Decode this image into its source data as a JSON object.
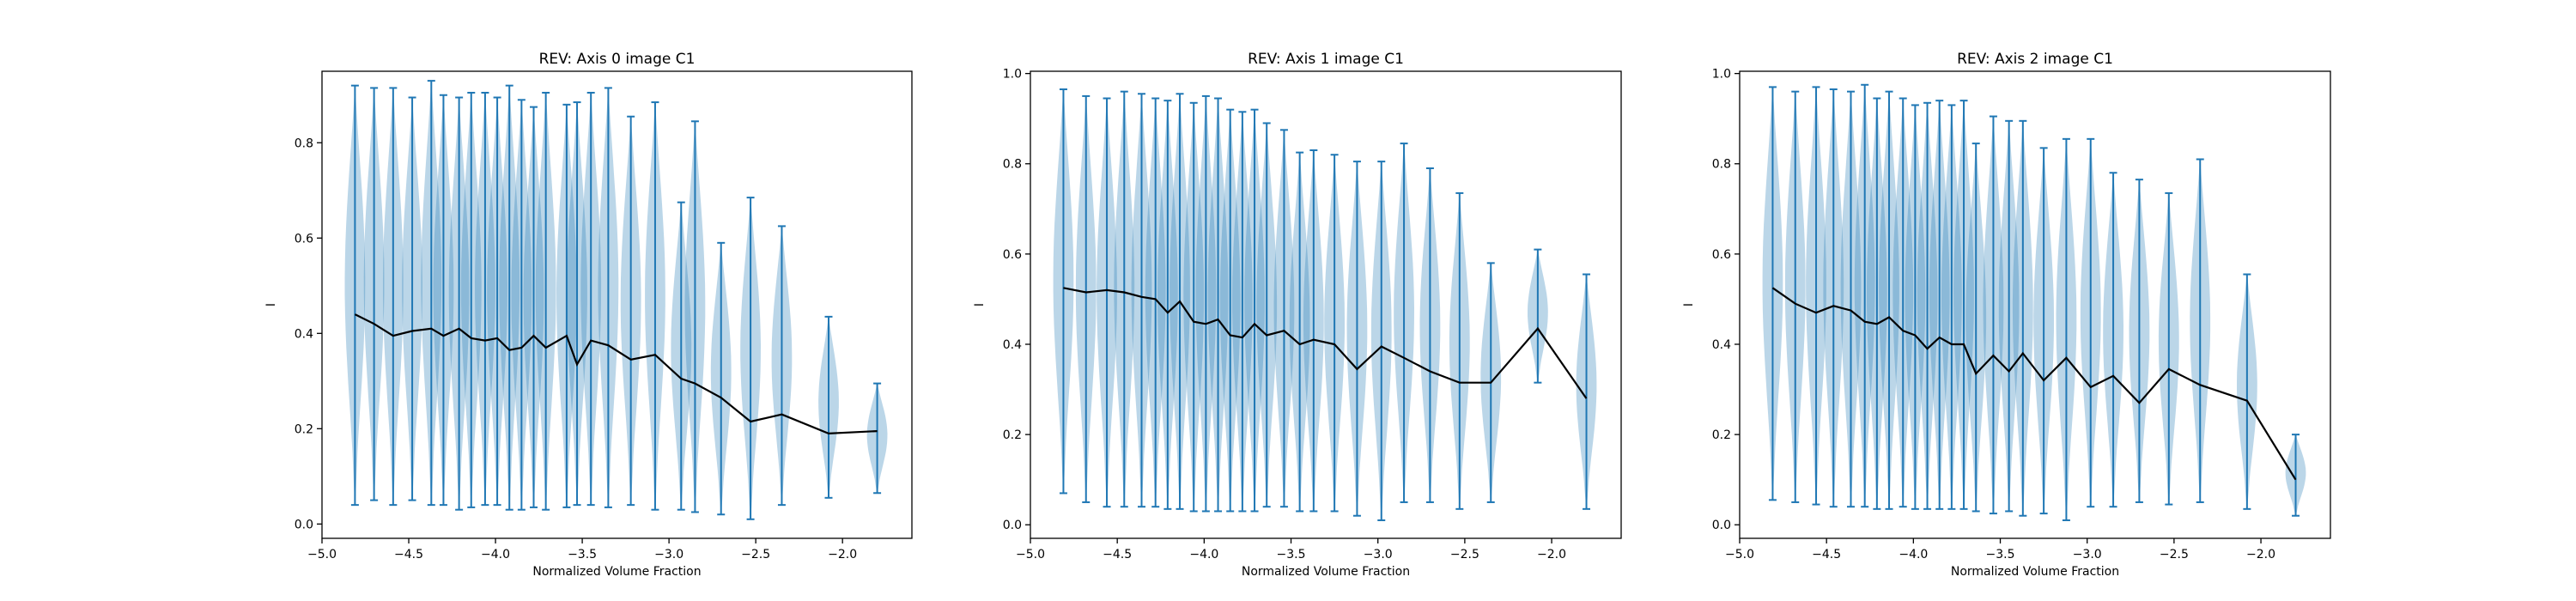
{
  "colors": {
    "violin": "#1f77b4",
    "mean_line": "#000000",
    "axes": "#000000",
    "background": "#ffffff"
  },
  "chart_data": [
    {
      "type": "violin",
      "title": "REV: Axis 0 image C1",
      "xlabel": "Normalized Volume Fraction",
      "ylabel": "I",
      "xlim": [
        -5.0,
        -1.6
      ],
      "ylim": [
        -0.03,
        0.95
      ],
      "xticks": [
        "−5.0",
        "−4.5",
        "−4.0",
        "−3.5",
        "−3.0",
        "−2.5",
        "−2.0"
      ],
      "yticks": [
        "0.0",
        "0.2",
        "0.4",
        "0.6",
        "0.8"
      ],
      "grid": false,
      "violins": [
        {
          "x": -4.81,
          "min": 0.04,
          "max": 0.92,
          "mean": 0.44
        },
        {
          "x": -4.7,
          "min": 0.05,
          "max": 0.915,
          "mean": 0.42
        },
        {
          "x": -4.59,
          "min": 0.04,
          "max": 0.915,
          "mean": 0.395
        },
        {
          "x": -4.48,
          "min": 0.05,
          "max": 0.895,
          "mean": 0.405
        },
        {
          "x": -4.37,
          "min": 0.04,
          "max": 0.93,
          "mean": 0.41
        },
        {
          "x": -4.3,
          "min": 0.04,
          "max": 0.9,
          "mean": 0.395
        },
        {
          "x": -4.21,
          "min": 0.03,
          "max": 0.895,
          "mean": 0.41
        },
        {
          "x": -4.14,
          "min": 0.035,
          "max": 0.905,
          "mean": 0.39
        },
        {
          "x": -4.06,
          "min": 0.04,
          "max": 0.905,
          "mean": 0.385
        },
        {
          "x": -3.99,
          "min": 0.04,
          "max": 0.895,
          "mean": 0.39
        },
        {
          "x": -3.92,
          "min": 0.03,
          "max": 0.92,
          "mean": 0.365
        },
        {
          "x": -3.85,
          "min": 0.03,
          "max": 0.89,
          "mean": 0.37
        },
        {
          "x": -3.78,
          "min": 0.035,
          "max": 0.875,
          "mean": 0.395
        },
        {
          "x": -3.71,
          "min": 0.03,
          "max": 0.905,
          "mean": 0.37
        },
        {
          "x": -3.59,
          "min": 0.035,
          "max": 0.88,
          "mean": 0.395
        },
        {
          "x": -3.53,
          "min": 0.04,
          "max": 0.885,
          "mean": 0.335
        },
        {
          "x": -3.45,
          "min": 0.04,
          "max": 0.905,
          "mean": 0.385
        },
        {
          "x": -3.35,
          "min": 0.035,
          "max": 0.915,
          "mean": 0.375
        },
        {
          "x": -3.22,
          "min": 0.04,
          "max": 0.855,
          "mean": 0.345
        },
        {
          "x": -3.08,
          "min": 0.03,
          "max": 0.885,
          "mean": 0.355
        },
        {
          "x": -2.93,
          "min": 0.03,
          "max": 0.675,
          "mean": 0.305
        },
        {
          "x": -2.85,
          "min": 0.025,
          "max": 0.845,
          "mean": 0.295
        },
        {
          "x": -2.7,
          "min": 0.02,
          "max": 0.59,
          "mean": 0.265
        },
        {
          "x": -2.53,
          "min": 0.01,
          "max": 0.685,
          "mean": 0.215
        },
        {
          "x": -2.35,
          "min": 0.04,
          "max": 0.625,
          "mean": 0.23
        },
        {
          "x": -2.08,
          "min": 0.055,
          "max": 0.435,
          "mean": 0.19
        },
        {
          "x": -1.8,
          "min": 0.065,
          "max": 0.295,
          "mean": 0.195
        }
      ]
    },
    {
      "type": "violin",
      "title": "REV: Axis 1 image C1",
      "xlabel": "Normalized Volume Fraction",
      "ylabel": "I",
      "xlim": [
        -5.0,
        -1.6
      ],
      "ylim": [
        -0.03,
        1.005
      ],
      "xticks": [
        "−5.0",
        "−4.5",
        "−4.0",
        "−3.5",
        "−3.0",
        "−2.5",
        "−2.0"
      ],
      "yticks": [
        "0.0",
        "0.2",
        "0.4",
        "0.6",
        "0.8",
        "1.0"
      ],
      "grid": false,
      "violins": [
        {
          "x": -4.81,
          "min": 0.07,
          "max": 0.965,
          "mean": 0.525
        },
        {
          "x": -4.68,
          "min": 0.05,
          "max": 0.95,
          "mean": 0.515
        },
        {
          "x": -4.56,
          "min": 0.04,
          "max": 0.945,
          "mean": 0.52
        },
        {
          "x": -4.46,
          "min": 0.04,
          "max": 0.96,
          "mean": 0.515
        },
        {
          "x": -4.36,
          "min": 0.04,
          "max": 0.955,
          "mean": 0.505
        },
        {
          "x": -4.28,
          "min": 0.04,
          "max": 0.945,
          "mean": 0.5
        },
        {
          "x": -4.21,
          "min": 0.035,
          "max": 0.94,
          "mean": 0.47
        },
        {
          "x": -4.14,
          "min": 0.035,
          "max": 0.955,
          "mean": 0.495
        },
        {
          "x": -4.06,
          "min": 0.03,
          "max": 0.935,
          "mean": 0.45
        },
        {
          "x": -3.99,
          "min": 0.03,
          "max": 0.95,
          "mean": 0.445
        },
        {
          "x": -3.92,
          "min": 0.03,
          "max": 0.945,
          "mean": 0.455
        },
        {
          "x": -3.85,
          "min": 0.03,
          "max": 0.92,
          "mean": 0.42
        },
        {
          "x": -3.78,
          "min": 0.03,
          "max": 0.915,
          "mean": 0.415
        },
        {
          "x": -3.71,
          "min": 0.03,
          "max": 0.92,
          "mean": 0.445
        },
        {
          "x": -3.64,
          "min": 0.04,
          "max": 0.89,
          "mean": 0.42
        },
        {
          "x": -3.54,
          "min": 0.04,
          "max": 0.875,
          "mean": 0.43
        },
        {
          "x": -3.45,
          "min": 0.03,
          "max": 0.825,
          "mean": 0.4
        },
        {
          "x": -3.37,
          "min": 0.03,
          "max": 0.83,
          "mean": 0.41
        },
        {
          "x": -3.25,
          "min": 0.03,
          "max": 0.82,
          "mean": 0.4
        },
        {
          "x": -3.12,
          "min": 0.02,
          "max": 0.805,
          "mean": 0.345
        },
        {
          "x": -2.98,
          "min": 0.01,
          "max": 0.805,
          "mean": 0.395
        },
        {
          "x": -2.85,
          "min": 0.05,
          "max": 0.845,
          "mean": 0.37
        },
        {
          "x": -2.7,
          "min": 0.05,
          "max": 0.79,
          "mean": 0.34
        },
        {
          "x": -2.53,
          "min": 0.035,
          "max": 0.735,
          "mean": 0.315
        },
        {
          "x": -2.35,
          "min": 0.05,
          "max": 0.58,
          "mean": 0.315
        },
        {
          "x": -2.08,
          "min": 0.315,
          "max": 0.61,
          "mean": 0.435
        },
        {
          "x": -1.8,
          "min": 0.035,
          "max": 0.555,
          "mean": 0.28
        }
      ]
    },
    {
      "type": "violin",
      "title": "REV: Axis 2 image C1",
      "xlabel": "Normalized Volume Fraction",
      "ylabel": "I",
      "xlim": [
        -5.0,
        -1.6
      ],
      "ylim": [
        -0.03,
        1.005
      ],
      "xticks": [
        "−5.0",
        "−4.5",
        "−4.0",
        "−3.5",
        "−3.0",
        "−2.5",
        "−2.0"
      ],
      "yticks": [
        "0.0",
        "0.2",
        "0.4",
        "0.6",
        "0.8",
        "1.0"
      ],
      "grid": false,
      "violins": [
        {
          "x": -4.81,
          "min": 0.055,
          "max": 0.97,
          "mean": 0.525
        },
        {
          "x": -4.68,
          "min": 0.05,
          "max": 0.96,
          "mean": 0.49
        },
        {
          "x": -4.56,
          "min": 0.045,
          "max": 0.97,
          "mean": 0.47
        },
        {
          "x": -4.46,
          "min": 0.04,
          "max": 0.965,
          "mean": 0.485
        },
        {
          "x": -4.36,
          "min": 0.04,
          "max": 0.96,
          "mean": 0.475
        },
        {
          "x": -4.28,
          "min": 0.04,
          "max": 0.975,
          "mean": 0.45
        },
        {
          "x": -4.21,
          "min": 0.035,
          "max": 0.945,
          "mean": 0.445
        },
        {
          "x": -4.14,
          "min": 0.035,
          "max": 0.96,
          "mean": 0.46
        },
        {
          "x": -4.06,
          "min": 0.04,
          "max": 0.945,
          "mean": 0.43
        },
        {
          "x": -3.99,
          "min": 0.035,
          "max": 0.93,
          "mean": 0.42
        },
        {
          "x": -3.92,
          "min": 0.035,
          "max": 0.935,
          "mean": 0.39
        },
        {
          "x": -3.85,
          "min": 0.035,
          "max": 0.94,
          "mean": 0.415
        },
        {
          "x": -3.78,
          "min": 0.035,
          "max": 0.93,
          "mean": 0.4
        },
        {
          "x": -3.71,
          "min": 0.035,
          "max": 0.94,
          "mean": 0.4
        },
        {
          "x": -3.64,
          "min": 0.03,
          "max": 0.845,
          "mean": 0.335
        },
        {
          "x": -3.54,
          "min": 0.025,
          "max": 0.905,
          "mean": 0.375
        },
        {
          "x": -3.45,
          "min": 0.03,
          "max": 0.895,
          "mean": 0.34
        },
        {
          "x": -3.37,
          "min": 0.02,
          "max": 0.895,
          "mean": 0.38
        },
        {
          "x": -3.25,
          "min": 0.025,
          "max": 0.835,
          "mean": 0.32
        },
        {
          "x": -3.12,
          "min": 0.01,
          "max": 0.855,
          "mean": 0.37
        },
        {
          "x": -2.98,
          "min": 0.04,
          "max": 0.855,
          "mean": 0.305
        },
        {
          "x": -2.85,
          "min": 0.04,
          "max": 0.78,
          "mean": 0.33
        },
        {
          "x": -2.7,
          "min": 0.05,
          "max": 0.765,
          "mean": 0.27
        },
        {
          "x": -2.53,
          "min": 0.045,
          "max": 0.735,
          "mean": 0.345
        },
        {
          "x": -2.35,
          "min": 0.05,
          "max": 0.81,
          "mean": 0.31
        },
        {
          "x": -2.08,
          "min": 0.035,
          "max": 0.555,
          "mean": 0.275
        },
        {
          "x": -1.8,
          "min": 0.02,
          "max": 0.2,
          "mean": 0.1
        }
      ]
    }
  ]
}
